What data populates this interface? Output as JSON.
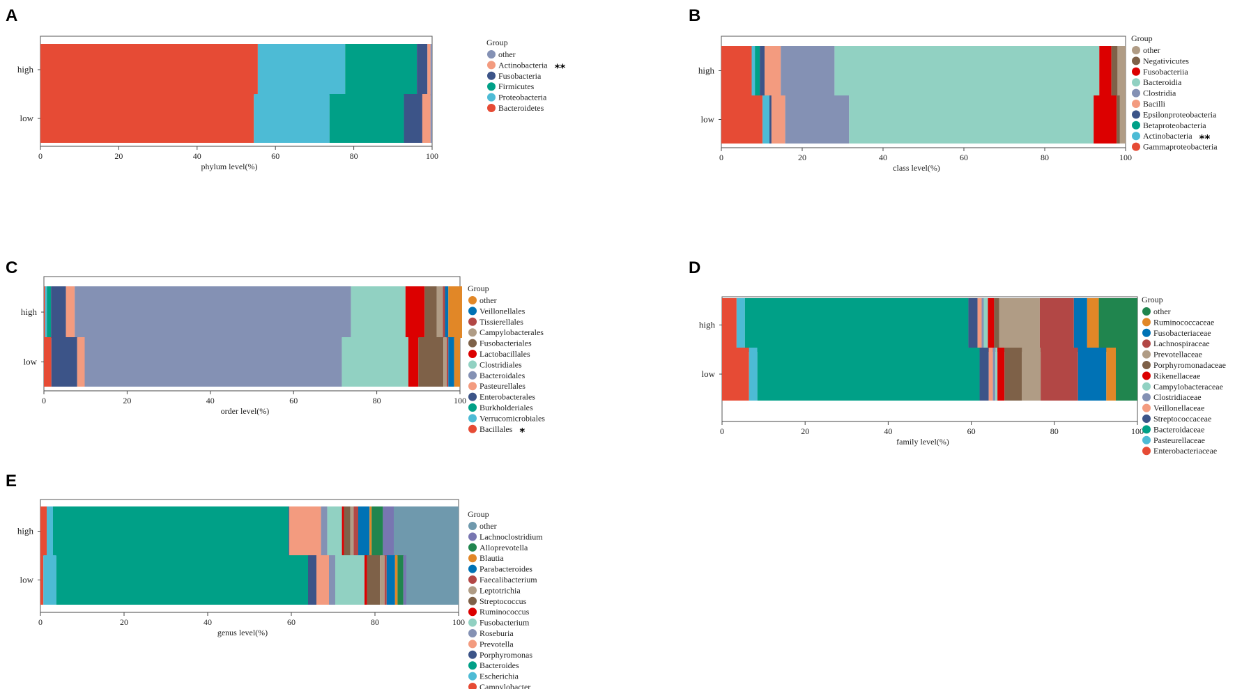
{
  "colors": {
    "Bacteroidetes": "#e64b35",
    "Proteobacteria": "#4dbbd5",
    "Firmicutes": "#00a087",
    "Fusobacteria": "#3c5488",
    "Actinobacteria": "#f39b7f",
    "other_phylum": "#8491b4",
    "Gammaproteobacteria": "#e64b35",
    "Betaproteobacteria": "#00a087",
    "Epsilonproteobacteria": "#3c5488",
    "Bacilli": "#f39b7f",
    "Clostridia": "#8491b4",
    "Bacteroidia": "#91d1c2",
    "Fusobacteriia": "#dc0000",
    "Negativicutes": "#7e6148",
    "other_class": "#b09c85"
  },
  "chart_data": [
    {
      "panel": "A",
      "type": "bar",
      "orientation": "horizontal",
      "stacked": true,
      "categories": [
        "high",
        "low"
      ],
      "xlabel": "phylum level(%)",
      "xlim": [
        0,
        100
      ],
      "xticks": [
        0,
        20,
        40,
        60,
        80,
        100
      ],
      "legend_title": "Group",
      "series": [
        {
          "name": "Bacteroidetes",
          "color": "#e64b35",
          "values": [
            55.5,
            54.5
          ]
        },
        {
          "name": "Proteobacteria",
          "color": "#4dbbd5",
          "values": [
            22.3,
            19.3
          ]
        },
        {
          "name": "Firmicutes",
          "color": "#00a087",
          "values": [
            18.3,
            19.0
          ]
        },
        {
          "name": "Fusobacteria",
          "color": "#3c5488",
          "values": [
            2.7,
            4.7
          ]
        },
        {
          "name": "Actinobacteria",
          "color": "#f39b7f",
          "values": [
            0.8,
            2.1
          ],
          "mark": "**"
        },
        {
          "name": "other",
          "color": "#8491b4",
          "values": [
            0.4,
            0.4
          ]
        }
      ]
    },
    {
      "panel": "B",
      "type": "bar",
      "orientation": "horizontal",
      "stacked": true,
      "categories": [
        "high",
        "low"
      ],
      "xlabel": "class level(%)",
      "xlim": [
        0,
        100
      ],
      "xticks": [
        0,
        20,
        40,
        60,
        80,
        100
      ],
      "legend_title": "Group",
      "series": [
        {
          "name": "Gammaproteobacteria",
          "color": "#e64b35",
          "values": [
            7.5,
            10.2
          ]
        },
        {
          "name": "Actinobacteria",
          "color": "#4dbbd5",
          "values": [
            0.8,
            1.7
          ],
          "mark": "**"
        },
        {
          "name": "Betaproteobacteria",
          "color": "#00a087",
          "values": [
            1.2,
            0.0
          ]
        },
        {
          "name": "Epsilonproteobacteria",
          "color": "#3c5488",
          "values": [
            1.2,
            0.5
          ]
        },
        {
          "name": "Bacilli",
          "color": "#f39b7f",
          "values": [
            4.0,
            3.4
          ]
        },
        {
          "name": "Clostridia",
          "color": "#8491b4",
          "values": [
            13.3,
            15.8
          ]
        },
        {
          "name": "Bacteroidia",
          "color": "#91d1c2",
          "values": [
            65.5,
            60.5
          ]
        },
        {
          "name": "Fusobacteriia",
          "color": "#dc0000",
          "values": [
            3.0,
            5.7
          ]
        },
        {
          "name": "Negativicutes",
          "color": "#7e6148",
          "values": [
            1.5,
            0.8
          ]
        },
        {
          "name": "other",
          "color": "#b09c85",
          "values": [
            2.0,
            1.4
          ]
        }
      ]
    },
    {
      "panel": "C",
      "type": "bar",
      "orientation": "horizontal",
      "stacked": true,
      "categories": [
        "high",
        "low"
      ],
      "xlabel": "order level(%)",
      "xlim": [
        0,
        100
      ],
      "xticks": [
        0,
        20,
        40,
        60,
        80,
        100
      ],
      "legend_title": "Group",
      "series": [
        {
          "name": "Bacillales",
          "color": "#e64b35",
          "values": [
            0.3,
            1.8
          ],
          "mark": "*"
        },
        {
          "name": "Verrucomicrobiales",
          "color": "#4dbbd5",
          "values": [
            0.4,
            0.0
          ]
        },
        {
          "name": "Burkholderiales",
          "color": "#00a087",
          "values": [
            1.0,
            0.0
          ]
        },
        {
          "name": "Enterobacterales",
          "color": "#3c5488",
          "values": [
            3.6,
            6.2
          ]
        },
        {
          "name": "Pasteurellales",
          "color": "#f39b7f",
          "values": [
            2.1,
            1.8
          ]
        },
        {
          "name": "Bacteroidales",
          "color": "#8491b4",
          "values": [
            66.4,
            61.8
          ]
        },
        {
          "name": "Clostridiales",
          "color": "#91d1c2",
          "values": [
            13.1,
            16.0
          ]
        },
        {
          "name": "Lactobacillales",
          "color": "#dc0000",
          "values": [
            4.6,
            2.4
          ]
        },
        {
          "name": "Fusobacteriales",
          "color": "#7e6148",
          "values": [
            2.9,
            6.0
          ]
        },
        {
          "name": "Campylobacterales",
          "color": "#b09c85",
          "values": [
            1.5,
            0.8
          ]
        },
        {
          "name": "Tissierellales",
          "color": "#b24745",
          "values": [
            0.5,
            0.4
          ]
        },
        {
          "name": "Veillonellales",
          "color": "#0072b5",
          "values": [
            0.8,
            1.4
          ]
        },
        {
          "name": "other",
          "color": "#e18727",
          "values": [
            3.3,
            1.4
          ]
        }
      ]
    },
    {
      "panel": "D",
      "type": "bar",
      "orientation": "horizontal",
      "stacked": true,
      "categories": [
        "high",
        "low"
      ],
      "xlabel": "family level(%)",
      "xlim": [
        0,
        100
      ],
      "xticks": [
        0,
        20,
        40,
        60,
        80,
        100
      ],
      "legend_title": "Group",
      "series": [
        {
          "name": "Enterobacteriaceae",
          "color": "#e64b35",
          "values": [
            3.5,
            6.5
          ]
        },
        {
          "name": "Pasteurellaceae",
          "color": "#4dbbd5",
          "values": [
            2.0,
            2.0
          ]
        },
        {
          "name": "Bacteroidaceae",
          "color": "#00a087",
          "values": [
            53.8,
            53.5
          ]
        },
        {
          "name": "Streptococcaceae",
          "color": "#3c5488",
          "values": [
            2.2,
            2.2
          ]
        },
        {
          "name": "Veillonellaceae",
          "color": "#f39b7f",
          "values": [
            1.0,
            1.0
          ]
        },
        {
          "name": "Clostridiaceae",
          "color": "#8491b4",
          "values": [
            0.5,
            0.6
          ]
        },
        {
          "name": "Campylobacteraceae",
          "color": "#91d1c2",
          "values": [
            1.0,
            0.5
          ]
        },
        {
          "name": "Rikenellaceae",
          "color": "#dc0000",
          "values": [
            1.5,
            1.7
          ]
        },
        {
          "name": "Porphyromonadaceae",
          "color": "#7e6148",
          "values": [
            1.2,
            4.2
          ]
        },
        {
          "name": "Prevotellaceae",
          "color": "#b09c85",
          "values": [
            9.8,
            4.5
          ]
        },
        {
          "name": "Lachnospiraceae",
          "color": "#b24745",
          "values": [
            8.2,
            9.0
          ]
        },
        {
          "name": "Fusobacteriaceae",
          "color": "#0072b5",
          "values": [
            3.2,
            6.8
          ]
        },
        {
          "name": "Ruminococcaceae",
          "color": "#e18727",
          "values": [
            2.8,
            2.3
          ]
        },
        {
          "name": "other",
          "color": "#20854e",
          "values": [
            9.3,
            5.2
          ]
        }
      ]
    },
    {
      "panel": "E",
      "type": "bar",
      "orientation": "horizontal",
      "stacked": true,
      "categories": [
        "high",
        "low"
      ],
      "xlabel": "genus level(%)",
      "xlim": [
        0,
        100
      ],
      "xticks": [
        0,
        20,
        40,
        60,
        80,
        100
      ],
      "legend_title": "Group",
      "series": [
        {
          "name": "Campylobacter",
          "color": "#e64b35",
          "values": [
            1.5,
            0.7
          ]
        },
        {
          "name": "Escherichia",
          "color": "#4dbbd5",
          "values": [
            1.5,
            3.1
          ]
        },
        {
          "name": "Bacteroides",
          "color": "#00a087",
          "values": [
            56.3,
            60.2
          ]
        },
        {
          "name": "Porphyromonas",
          "color": "#3c5488",
          "values": [
            0.2,
            2.0
          ]
        },
        {
          "name": "Prevotella",
          "color": "#f39b7f",
          "values": [
            7.6,
            3.0
          ]
        },
        {
          "name": "Roseburia",
          "color": "#8491b4",
          "values": [
            1.5,
            1.5
          ]
        },
        {
          "name": "Fusobacterium",
          "color": "#91d1c2",
          "values": [
            3.5,
            7.0
          ]
        },
        {
          "name": "Ruminococcus",
          "color": "#dc0000",
          "values": [
            0.5,
            0.6
          ]
        },
        {
          "name": "Streptococcus",
          "color": "#7e6148",
          "values": [
            1.5,
            3.1
          ]
        },
        {
          "name": "Leptotrichia",
          "color": "#b09c85",
          "values": [
            0.8,
            1.1
          ]
        },
        {
          "name": "Faecalibacterium",
          "color": "#b24745",
          "values": [
            1.1,
            0.5
          ]
        },
        {
          "name": "Parabacteroides",
          "color": "#0072b5",
          "values": [
            2.7,
            2.0
          ]
        },
        {
          "name": "Blautia",
          "color": "#e18727",
          "values": [
            0.5,
            0.6
          ]
        },
        {
          "name": "Alloprevotella",
          "color": "#20854e",
          "values": [
            2.7,
            1.4
          ]
        },
        {
          "name": "Lachnoclostridium",
          "color": "#7876b1",
          "values": [
            2.6,
            0.7
          ]
        },
        {
          "name": "other",
          "color": "#6f99ad",
          "values": [
            15.5,
            12.5
          ]
        }
      ]
    }
  ]
}
